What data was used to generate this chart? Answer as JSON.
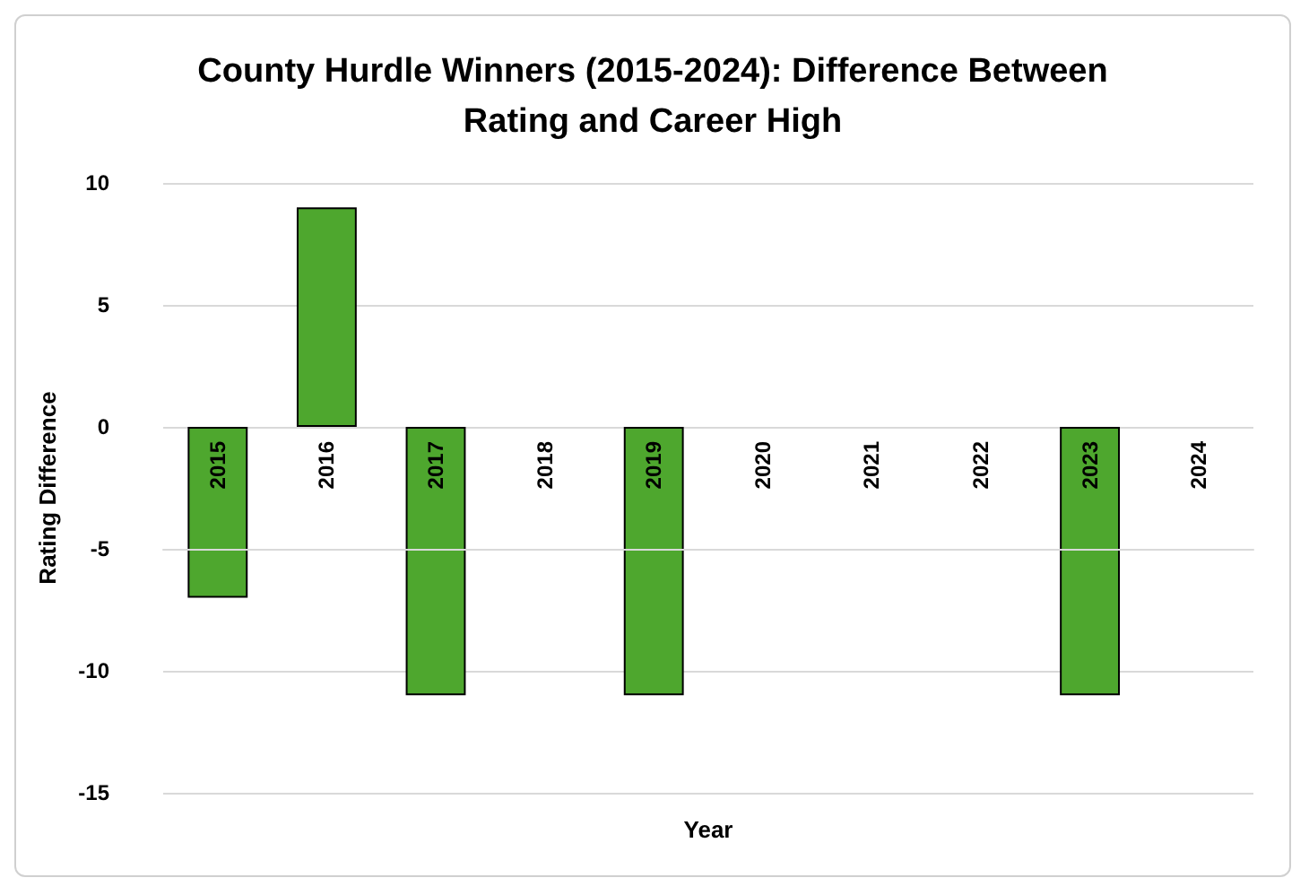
{
  "chart_data": {
    "type": "bar",
    "title": "County Hurdle Winners (2015-2024): Difference Between\nRating and Career High",
    "xlabel": "Year",
    "ylabel": "Rating Difference",
    "categories": [
      "2015",
      "2016",
      "2017",
      "2018",
      "2019",
      "2020",
      "2021",
      "2022",
      "2023",
      "2024"
    ],
    "values": [
      -7,
      9,
      -11,
      null,
      -11,
      null,
      null,
      null,
      -11,
      null
    ],
    "color": "#4ea72e",
    "ylim": [
      -15,
      10
    ],
    "yticks": [
      -15,
      -10,
      -5,
      0,
      5,
      10
    ],
    "grid": "y"
  }
}
